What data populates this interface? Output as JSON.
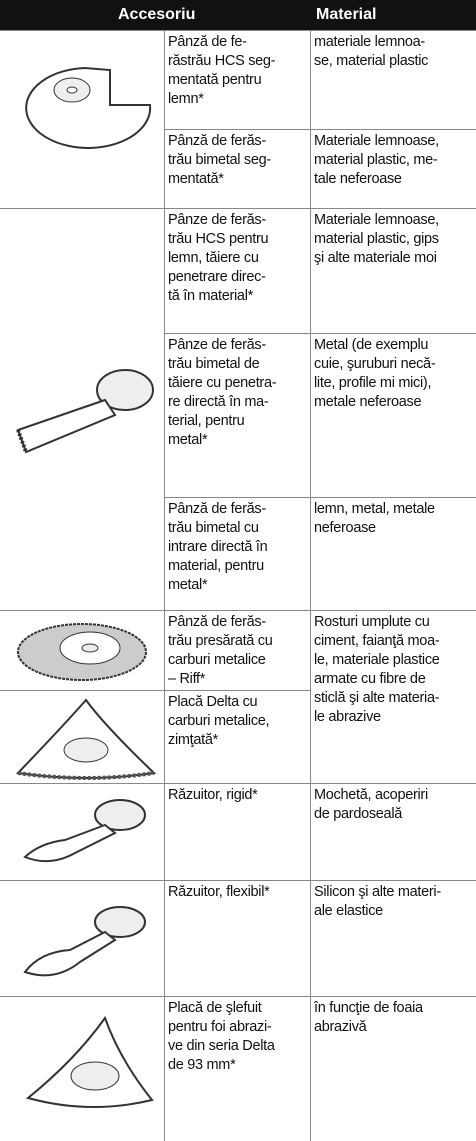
{
  "header": {
    "accessory": "Accesoriu",
    "material": "Material"
  },
  "rows": [
    {
      "name": [
        "Pânză de fe-",
        "răstrău HCS seg-",
        "mentată pentru",
        "lemn*"
      ],
      "material": [
        "materiale lemnoa-",
        "se, material plastic"
      ]
    },
    {
      "name": [
        "Pânză de ferăs-",
        "trău bimetal seg-",
        "mentată*"
      ],
      "material": [
        "Materiale lemnoase,",
        "material plastic, me-",
        "tale neferoase"
      ]
    },
    {
      "name": [
        "Pânze de ferăs-",
        "trău HCS pentru",
        "lemn, tăiere cu",
        "penetrare direc-",
        "tă în material*"
      ],
      "material": [
        "Materiale lemnoase,",
        "material plastic, gips",
        "şi alte materiale moi"
      ]
    },
    {
      "name": [
        "Pânze de ferăs-",
        "trău bimetal de",
        "tăiere cu penetra-",
        "re directă în ma-",
        "terial, pentru",
        "metal*"
      ],
      "material": [
        "Metal (de exemplu",
        "cuie, şuruburi necă-",
        "lite, profile mi mici),",
        "metale neferoase"
      ]
    },
    {
      "name": [
        "Pânză de ferăs-",
        "trău bimetal cu",
        "intrare directă în",
        "material, pentru",
        "metal*"
      ],
      "material": [
        "lemn, metal, metale",
        "neferoase"
      ]
    },
    {
      "name": [
        "Pânză de ferăs-",
        "trău presărată cu",
        "carburi metalice",
        "– Riff*"
      ],
      "material": [
        "Rosturi umplute cu",
        "ciment, faianţă moa-",
        "le, materiale plastice",
        "armate cu fibre de",
        "sticlă şi alte materia-",
        "le abrazive"
      ]
    },
    {
      "name": [
        "Placă Delta cu",
        "carburi metalice,",
        "zimţată*"
      ]
    },
    {
      "name": [
        "Răzuitor, rigid*"
      ],
      "material": [
        "Mochetă, acoperiri",
        "de pardoseală"
      ]
    },
    {
      "name": [
        "Răzuitor, flexibil*"
      ],
      "material": [
        "Silicon şi alte materi-",
        "ale elastice"
      ]
    },
    {
      "name": [
        "Placă de şlefuit",
        "pentru foi abrazi-",
        "ve din seria Delta",
        "de 93 mm*"
      ],
      "material": [
        "în funcţie de foaia",
        "abrazivă"
      ]
    }
  ]
}
